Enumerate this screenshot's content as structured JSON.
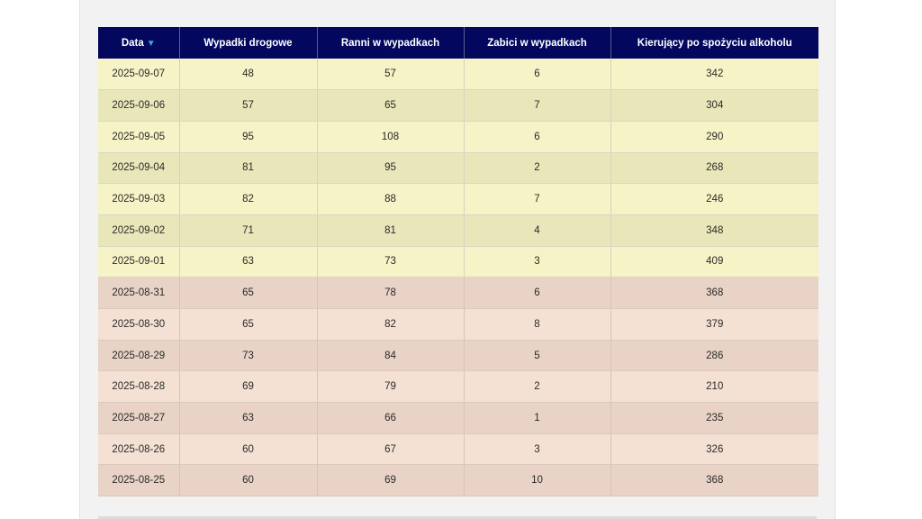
{
  "table": {
    "columns": [
      {
        "label": "Data",
        "sorted": "desc",
        "icon": "sort-desc-icon"
      },
      {
        "label": "Wypadki drogowe"
      },
      {
        "label": "Ranni w wypadkach"
      },
      {
        "label": "Zabici w wypadkach"
      },
      {
        "label": "Kierujący po spożyciu alkoholu"
      }
    ],
    "sort_indicator": "▼",
    "row_colors": {
      "september": [
        "#f6f3c6",
        "#e9e7ba"
      ],
      "august": [
        "#e8d3c6",
        "#f4e1d4"
      ],
      "header_bg": "#03075e"
    },
    "rows": [
      [
        "2025-09-07",
        "48",
        "57",
        "6",
        "342"
      ],
      [
        "2025-09-06",
        "57",
        "65",
        "7",
        "304"
      ],
      [
        "2025-09-05",
        "95",
        "108",
        "6",
        "290"
      ],
      [
        "2025-09-04",
        "81",
        "95",
        "2",
        "268"
      ],
      [
        "2025-09-03",
        "82",
        "88",
        "7",
        "246"
      ],
      [
        "2025-09-02",
        "71",
        "81",
        "4",
        "348"
      ],
      [
        "2025-09-01",
        "63",
        "73",
        "3",
        "409"
      ],
      [
        "2025-08-31",
        "65",
        "78",
        "6",
        "368"
      ],
      [
        "2025-08-30",
        "65",
        "82",
        "8",
        "379"
      ],
      [
        "2025-08-29",
        "73",
        "84",
        "5",
        "286"
      ],
      [
        "2025-08-28",
        "69",
        "79",
        "2",
        "210"
      ],
      [
        "2025-08-27",
        "63",
        "66",
        "1",
        "235"
      ],
      [
        "2025-08-26",
        "60",
        "67",
        "3",
        "326"
      ],
      [
        "2025-08-25",
        "60",
        "69",
        "10",
        "368"
      ]
    ]
  }
}
